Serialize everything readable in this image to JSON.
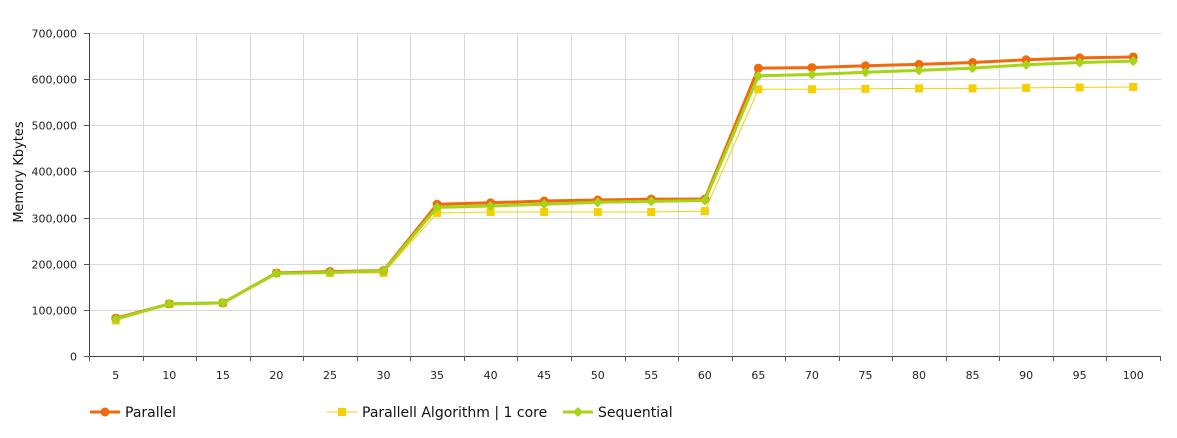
{
  "chart_data": {
    "type": "line",
    "title": "",
    "xlabel": "",
    "ylabel": "Memory Kbytes",
    "x": [
      5,
      10,
      15,
      20,
      25,
      30,
      35,
      40,
      45,
      50,
      55,
      60,
      65,
      70,
      75,
      80,
      85,
      90,
      95,
      100
    ],
    "x_tick_labels": [
      "5",
      "10",
      "15",
      "20",
      "25",
      "30",
      "35",
      "40",
      "45",
      "50",
      "55",
      "60",
      "65",
      "70",
      "75",
      "80",
      "85",
      "90",
      "95",
      "100"
    ],
    "ylim": [
      0,
      700000
    ],
    "y_ticks": [
      0,
      100000,
      200000,
      300000,
      400000,
      500000,
      600000,
      700000
    ],
    "y_tick_labels": [
      "0",
      "100,000",
      "200,000",
      "300,000",
      "400,000",
      "500,000",
      "600,000",
      "700,000"
    ],
    "grid": true,
    "legend_position": "bottom",
    "series": [
      {
        "name": "Parallel",
        "color": "#f06a0c",
        "marker": "circle",
        "values": [
          82000,
          113000,
          115000,
          180000,
          183000,
          185000,
          329000,
          332000,
          336000,
          338000,
          340000,
          340000,
          624000,
          625000,
          629000,
          632000,
          636000,
          642000,
          646000,
          648000
        ]
      },
      {
        "name": "Parallell Algorithm | 1 core",
        "color": "#f5d000",
        "marker": "square",
        "values": [
          77000,
          113000,
          115000,
          180000,
          180000,
          180000,
          310000,
          312000,
          312000,
          312000,
          312000,
          314000,
          578000,
          578000,
          579000,
          580000,
          580000,
          581000,
          582000,
          583000
        ]
      },
      {
        "name": "Sequential",
        "color": "#a6d416",
        "marker": "diamond",
        "values": [
          80000,
          113000,
          115000,
          179000,
          181000,
          184000,
          322000,
          325000,
          329000,
          333000,
          335000,
          337000,
          607000,
          610000,
          615000,
          619000,
          624000,
          631000,
          636000,
          639000
        ]
      }
    ]
  }
}
